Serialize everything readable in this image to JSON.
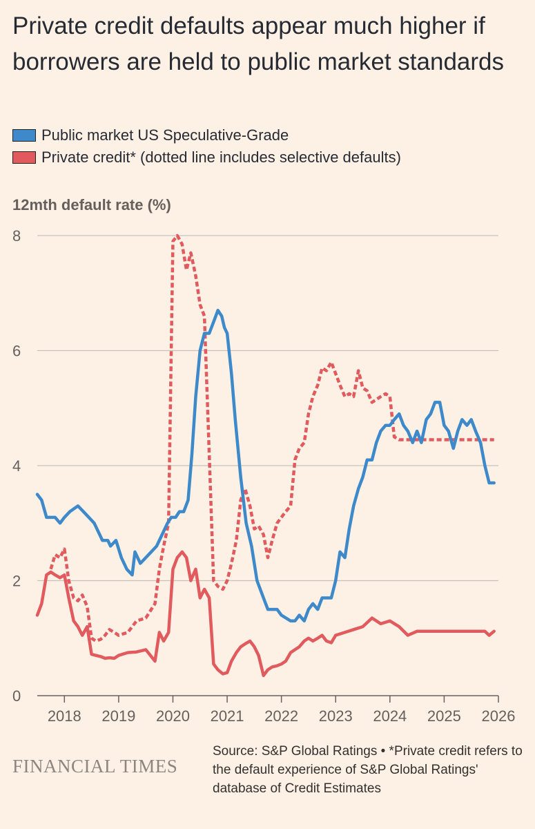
{
  "header": {
    "title": "Private credit defaults appear much higher if borrowers are held to public market standards"
  },
  "legend": {
    "items": [
      {
        "label": "Public market US Speculative-Grade",
        "color": "#3d89c9"
      },
      {
        "label": "Private credit* (dotted line includes selective defaults)",
        "color": "#e15a5e"
      }
    ]
  },
  "footer": {
    "brand": "FINANCIAL TIMES",
    "source": "Source: S&P Global Ratings • *Private credit refers to the default experience of S&P Global Ratings' database of Credit Estimates"
  },
  "chart_data": {
    "type": "line",
    "title": "Private credit defaults appear much higher if borrowers are held to public market standards",
    "ylabel": "12mth default rate (%)",
    "xlabel": "",
    "xlim": [
      2017.5,
      2026.0
    ],
    "ylim": [
      0,
      8
    ],
    "yticks": [
      0,
      2,
      4,
      6,
      8
    ],
    "ytick_labels": [
      "0",
      "2",
      "4",
      "6",
      "8"
    ],
    "xticks": [
      2018,
      2019,
      2020,
      2021,
      2022,
      2023,
      2024,
      2025,
      2026
    ],
    "xtick_labels": [
      "2018",
      "2019",
      "2020",
      "2021",
      "2022",
      "2023",
      "2024",
      "2025",
      "2026"
    ],
    "grid": "horizontal",
    "series": [
      {
        "name": "Public market US Speculative-Grade",
        "color": "#3d89c9",
        "style": "solid",
        "x": [
          2017.5,
          2017.58,
          2017.67,
          2017.83,
          2017.92,
          2018.0,
          2018.1,
          2018.25,
          2018.35,
          2018.45,
          2018.55,
          2018.65,
          2018.7,
          2018.75,
          2018.8,
          2018.85,
          2018.95,
          2019.05,
          2019.15,
          2019.25,
          2019.3,
          2019.4,
          2019.5,
          2019.6,
          2019.7,
          2019.8,
          2019.9,
          2019.97,
          2020.05,
          2020.12,
          2020.2,
          2020.28,
          2020.35,
          2020.42,
          2020.5,
          2020.58,
          2020.67,
          2020.75,
          2020.83,
          2020.9,
          2020.95,
          2021.0,
          2021.08,
          2021.15,
          2021.25,
          2021.35,
          2021.45,
          2021.55,
          2021.67,
          2021.75,
          2021.83,
          2021.92,
          2022.0,
          2022.17,
          2022.25,
          2022.33,
          2022.42,
          2022.5,
          2022.58,
          2022.67,
          2022.75,
          2022.83,
          2022.92,
          2023.0,
          2023.08,
          2023.17,
          2023.25,
          2023.33,
          2023.42,
          2023.5,
          2023.58,
          2023.67,
          2023.75,
          2023.83,
          2023.92,
          2024.0,
          2024.08,
          2024.17,
          2024.25,
          2024.33,
          2024.42,
          2024.5,
          2024.58,
          2024.67,
          2024.75,
          2024.83,
          2024.92,
          2025.0,
          2025.08,
          2025.17,
          2025.25,
          2025.33,
          2025.42,
          2025.5,
          2025.58,
          2025.67,
          2025.75,
          2025.83,
          2025.92
        ],
        "values": [
          3.5,
          3.4,
          3.1,
          3.1,
          3.0,
          3.1,
          3.2,
          3.3,
          3.2,
          3.1,
          3.0,
          2.8,
          2.7,
          2.7,
          2.7,
          2.6,
          2.7,
          2.4,
          2.2,
          2.1,
          2.5,
          2.3,
          2.4,
          2.5,
          2.6,
          2.8,
          3.0,
          3.1,
          3.1,
          3.2,
          3.2,
          3.4,
          4.2,
          5.2,
          6.0,
          6.3,
          6.3,
          6.5,
          6.7,
          6.6,
          6.4,
          6.3,
          5.6,
          4.8,
          3.8,
          3.0,
          2.6,
          2.0,
          1.7,
          1.5,
          1.5,
          1.5,
          1.4,
          1.3,
          1.3,
          1.4,
          1.3,
          1.5,
          1.6,
          1.5,
          1.7,
          1.7,
          1.7,
          2.0,
          2.5,
          2.4,
          2.9,
          3.3,
          3.6,
          3.8,
          4.1,
          4.1,
          4.4,
          4.6,
          4.7,
          4.7,
          4.8,
          4.9,
          4.7,
          4.6,
          4.4,
          4.6,
          4.4,
          4.8,
          4.9,
          5.1,
          5.1,
          4.7,
          4.6,
          4.3,
          4.6,
          4.8,
          4.7,
          4.8,
          4.6,
          4.4,
          4.0,
          3.7,
          3.7
        ]
      },
      {
        "name": "Private credit (excluding selective defaults)",
        "color": "#e15a5e",
        "style": "solid",
        "x": [
          2017.5,
          2017.58,
          2017.67,
          2017.75,
          2017.83,
          2017.92,
          2018.0,
          2018.08,
          2018.17,
          2018.25,
          2018.33,
          2018.42,
          2018.5,
          2018.58,
          2018.67,
          2018.75,
          2018.83,
          2018.92,
          2019.0,
          2019.17,
          2019.33,
          2019.5,
          2019.67,
          2019.75,
          2019.83,
          2019.92,
          2020.0,
          2020.08,
          2020.17,
          2020.25,
          2020.33,
          2020.42,
          2020.5,
          2020.58,
          2020.67,
          2020.75,
          2020.83,
          2020.92,
          2021.0,
          2021.08,
          2021.17,
          2021.25,
          2021.33,
          2021.42,
          2021.5,
          2021.58,
          2021.67,
          2021.75,
          2021.83,
          2021.92,
          2022.0,
          2022.08,
          2022.17,
          2022.25,
          2022.33,
          2022.42,
          2022.5,
          2022.58,
          2022.67,
          2022.75,
          2022.83,
          2022.92,
          2023.0,
          2023.17,
          2023.33,
          2023.5,
          2023.67,
          2023.83,
          2024.0,
          2024.17,
          2024.33,
          2024.5,
          2024.67,
          2024.83,
          2025.0,
          2025.17,
          2025.33,
          2025.42,
          2025.5,
          2025.58,
          2025.67,
          2025.75,
          2025.83,
          2025.92
        ],
        "values": [
          1.4,
          1.6,
          2.1,
          2.15,
          2.1,
          2.05,
          2.1,
          1.7,
          1.3,
          1.2,
          1.05,
          1.2,
          0.72,
          0.7,
          0.68,
          0.65,
          0.66,
          0.65,
          0.7,
          0.75,
          0.76,
          0.8,
          0.6,
          1.1,
          0.95,
          1.1,
          2.2,
          2.4,
          2.5,
          2.4,
          2.0,
          2.2,
          1.7,
          1.85,
          1.7,
          0.55,
          0.45,
          0.38,
          0.4,
          0.6,
          0.75,
          0.85,
          0.9,
          0.95,
          0.85,
          0.7,
          0.35,
          0.45,
          0.5,
          0.52,
          0.55,
          0.6,
          0.75,
          0.8,
          0.85,
          0.95,
          1.0,
          0.95,
          1.0,
          1.05,
          0.95,
          0.92,
          1.05,
          1.1,
          1.15,
          1.2,
          1.35,
          1.25,
          1.3,
          1.2,
          1.05,
          1.12,
          1.12,
          1.12,
          1.12,
          1.12,
          1.12,
          1.12,
          1.12,
          1.12,
          1.12,
          1.12,
          1.05,
          1.12
        ]
      },
      {
        "name": "Private credit (including selective defaults)",
        "color": "#e15a5e",
        "style": "dotted",
        "x": [
          2017.75,
          2017.83,
          2017.92,
          2018.0,
          2018.08,
          2018.17,
          2018.25,
          2018.33,
          2018.42,
          2018.5,
          2018.58,
          2018.67,
          2018.75,
          2018.83,
          2018.92,
          2019.0,
          2019.17,
          2019.33,
          2019.5,
          2019.67,
          2019.75,
          2019.83,
          2019.92,
          2020.0,
          2020.08,
          2020.17,
          2020.25,
          2020.33,
          2020.42,
          2020.5,
          2020.58,
          2020.67,
          2020.75,
          2020.83,
          2020.92,
          2021.0,
          2021.08,
          2021.17,
          2021.25,
          2021.33,
          2021.42,
          2021.5,
          2021.58,
          2021.67,
          2021.75,
          2021.83,
          2021.92,
          2022.0,
          2022.08,
          2022.17,
          2022.25,
          2022.33,
          2022.42,
          2022.5,
          2022.58,
          2022.67,
          2022.75,
          2022.83,
          2022.92,
          2023.0,
          2023.08,
          2023.17,
          2023.25,
          2023.33,
          2023.42,
          2023.5,
          2023.58,
          2023.67,
          2023.75,
          2023.83,
          2023.92,
          2024.0,
          2024.08,
          2024.17,
          2024.25,
          2024.33,
          2024.42,
          2024.5,
          2024.58,
          2024.67,
          2024.75,
          2024.83,
          2024.92,
          2025.0,
          2025.08,
          2025.17,
          2025.25,
          2025.33,
          2025.42,
          2025.5,
          2025.58,
          2025.67,
          2025.75,
          2025.83,
          2025.92
        ],
        "values": [
          2.2,
          2.45,
          2.4,
          2.55,
          2.0,
          1.7,
          1.65,
          1.75,
          1.55,
          1.0,
          0.95,
          0.98,
          1.05,
          1.15,
          1.1,
          1.05,
          1.1,
          1.3,
          1.35,
          1.6,
          2.2,
          2.6,
          3.0,
          7.9,
          8.0,
          7.85,
          7.4,
          7.7,
          7.3,
          6.8,
          6.6,
          4.2,
          2.0,
          1.9,
          1.85,
          2.0,
          2.3,
          2.7,
          3.4,
          3.6,
          3.3,
          2.9,
          2.95,
          2.8,
          2.4,
          2.7,
          3.0,
          3.1,
          3.2,
          3.3,
          4.1,
          4.3,
          4.4,
          4.9,
          5.2,
          5.4,
          5.7,
          5.65,
          5.8,
          5.6,
          5.4,
          5.2,
          5.25,
          5.2,
          5.65,
          5.35,
          5.3,
          5.1,
          5.15,
          5.2,
          5.25,
          5.2,
          4.5,
          4.45,
          4.45,
          4.45,
          4.45,
          4.45,
          4.45,
          4.45,
          4.45,
          4.45,
          4.45,
          4.45,
          4.45,
          4.45,
          4.45,
          4.45,
          4.45,
          4.45,
          4.45,
          4.45,
          4.45,
          4.45,
          4.45
        ]
      }
    ],
    "annotations": []
  }
}
